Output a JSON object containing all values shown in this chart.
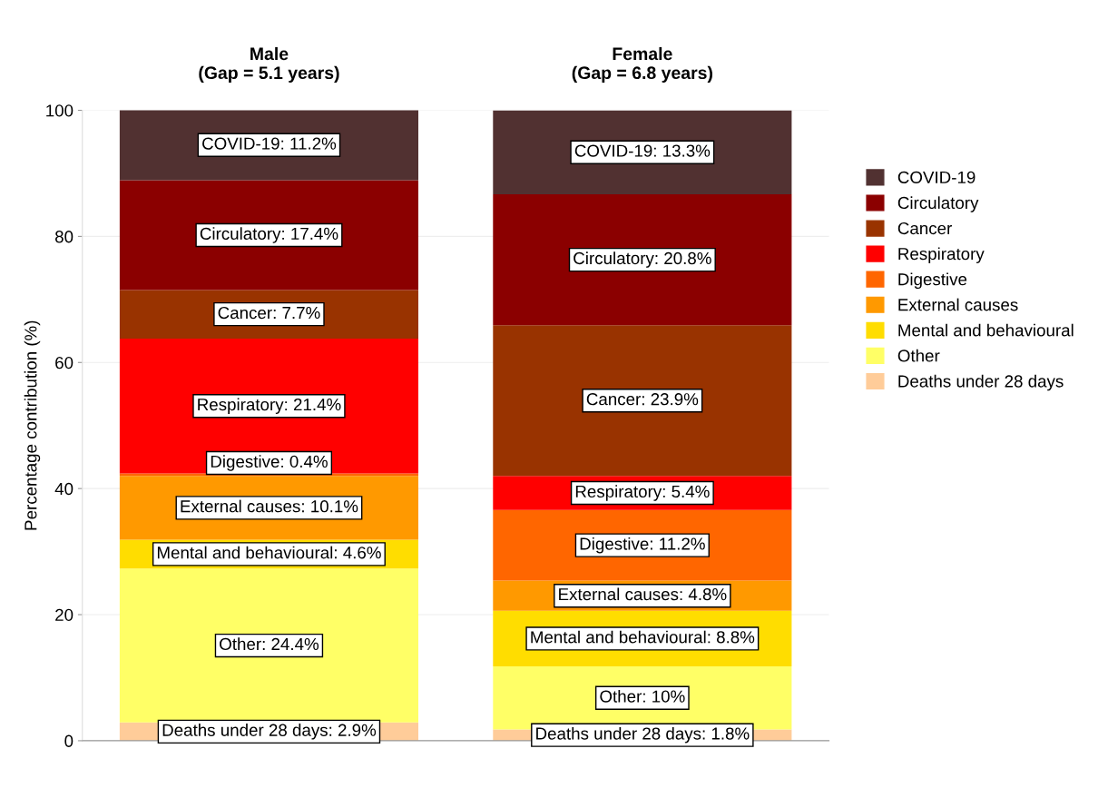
{
  "chart_data": {
    "type": "bar",
    "stacked": true,
    "categories": [
      "Male\n(Gap = 5.1 years)",
      "Female\n(Gap = 6.8 years)"
    ],
    "ylabel": "Percentage contribution (%)",
    "ylim": [
      0,
      100
    ],
    "yticks": [
      0,
      20,
      40,
      60,
      80,
      100
    ],
    "grid": "y",
    "legend": "right",
    "series": [
      {
        "name": "Deaths under 28 days",
        "color": "#ffcc99",
        "values": [
          2.9,
          1.8
        ],
        "value_labels": [
          "Deaths under 28 days: 2.9%",
          "Deaths under 28 days: 1.8%"
        ]
      },
      {
        "name": "Other",
        "color": "#ffff66",
        "values": [
          24.4,
          10
        ],
        "value_labels": [
          "Other: 24.4%",
          "Other: 10%"
        ]
      },
      {
        "name": "Mental and behavioural",
        "color": "#ffdd00",
        "values": [
          4.6,
          8.8
        ],
        "value_labels": [
          "Mental and behavioural: 4.6%",
          "Mental and behavioural: 8.8%"
        ]
      },
      {
        "name": "External causes",
        "color": "#ff9900",
        "values": [
          10.1,
          4.8
        ],
        "value_labels": [
          "External causes: 10.1%",
          "External causes: 4.8%"
        ]
      },
      {
        "name": "Digestive",
        "color": "#ff6600",
        "values": [
          0.4,
          11.2
        ],
        "value_labels": [
          "Digestive: 0.4%",
          "Digestive: 11.2%"
        ]
      },
      {
        "name": "Respiratory",
        "color": "#ff0000",
        "values": [
          21.4,
          5.4
        ],
        "value_labels": [
          "Respiratory: 21.4%",
          "Respiratory: 5.4%"
        ]
      },
      {
        "name": "Cancer",
        "color": "#993300",
        "values": [
          7.7,
          23.9
        ],
        "value_labels": [
          "Cancer: 7.7%",
          "Cancer: 23.9%"
        ]
      },
      {
        "name": "Circulatory",
        "color": "#8b0000",
        "values": [
          17.4,
          20.8
        ],
        "value_labels": [
          "Circulatory: 17.4%",
          "Circulatory: 20.8%"
        ]
      },
      {
        "name": "COVID-19",
        "color": "#513131",
        "values": [
          11.2,
          13.3
        ],
        "value_labels": [
          "COVID-19: 11.2%",
          "COVID-19: 13.3%"
        ]
      }
    ]
  }
}
